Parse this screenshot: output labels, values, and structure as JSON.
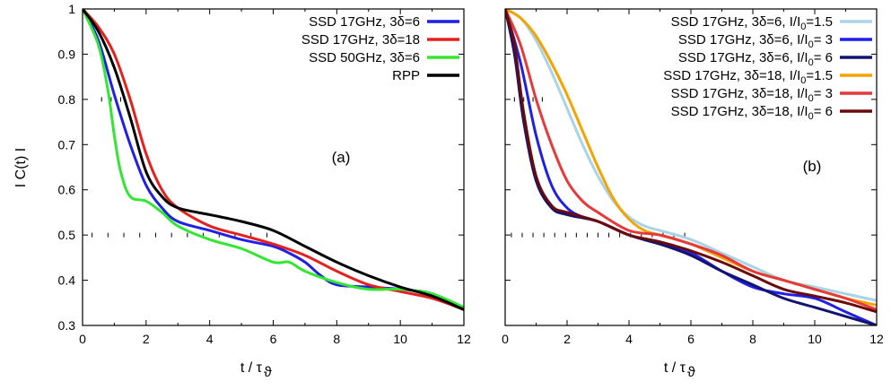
{
  "chart_data": [
    {
      "type": "line",
      "panel_label": "(a)",
      "xlabel": "t / τ",
      "xlabel_sub": "ϑ",
      "ylabel": "I C(t) I",
      "xlim": [
        0,
        12
      ],
      "ylim": [
        0.3,
        1
      ],
      "xticks": [
        "0",
        "2",
        "4",
        "6",
        "8",
        "10",
        "12"
      ],
      "yticks": [
        "0.3",
        "0.4",
        "0.5",
        "0.6",
        "0.7",
        "0.8",
        "0.9",
        "1"
      ],
      "legend_position": "top-right",
      "series": [
        {
          "name": "SSD 17GHz, 3δ=6",
          "color": "#1f1fe6",
          "x": [
            0,
            0.5,
            1,
            1.5,
            2,
            2.5,
            3,
            4,
            5,
            6,
            6.5,
            7,
            7.5,
            8,
            9,
            10,
            11,
            12
          ],
          "y": [
            1.0,
            0.93,
            0.81,
            0.7,
            0.61,
            0.56,
            0.53,
            0.51,
            0.49,
            0.475,
            0.46,
            0.44,
            0.41,
            0.39,
            0.385,
            0.38,
            0.37,
            0.335
          ]
        },
        {
          "name": "SSD 17GHz, 3δ=18",
          "color": "#e61f1f",
          "x": [
            0,
            0.5,
            1,
            1.5,
            2,
            2.5,
            3,
            4,
            5,
            6,
            7,
            8,
            9,
            10,
            11,
            12
          ],
          "y": [
            1.0,
            0.96,
            0.9,
            0.8,
            0.68,
            0.6,
            0.56,
            0.52,
            0.5,
            0.48,
            0.455,
            0.42,
            0.39,
            0.375,
            0.36,
            0.335
          ]
        },
        {
          "name": "SSD 50GHz, 3δ=6",
          "color": "#33e633",
          "x": [
            0,
            0.5,
            0.8,
            1,
            1.2,
            1.5,
            2,
            2.5,
            3,
            4,
            5,
            6,
            6.5,
            7,
            8,
            9,
            10,
            11,
            12
          ],
          "y": [
            1.0,
            0.92,
            0.82,
            0.72,
            0.64,
            0.585,
            0.575,
            0.55,
            0.52,
            0.49,
            0.47,
            0.44,
            0.44,
            0.42,
            0.395,
            0.38,
            0.38,
            0.37,
            0.34
          ]
        },
        {
          "name": "RPP",
          "color": "#000000",
          "x": [
            0,
            0.5,
            1,
            1.5,
            2,
            2.5,
            3,
            4,
            5,
            6,
            7,
            8,
            9,
            10,
            11,
            12
          ],
          "y": [
            1.0,
            0.95,
            0.87,
            0.76,
            0.64,
            0.585,
            0.56,
            0.545,
            0.53,
            0.51,
            0.475,
            0.44,
            0.41,
            0.385,
            0.365,
            0.335
          ]
        }
      ]
    },
    {
      "type": "line",
      "panel_label": "(b)",
      "xlabel": "t / τ",
      "xlabel_sub": "ϑ",
      "xlim": [
        0,
        12
      ],
      "ylim": [
        0.3,
        1
      ],
      "xticks": [
        "0",
        "2",
        "4",
        "6",
        "8",
        "10",
        "12"
      ],
      "legend_position": "top-right",
      "series": [
        {
          "name": "SSD 17GHz, 3δ=6, I/I0=1.5",
          "legend_base": "SSD 17GHz, 3δ=6, I/I",
          "legend_sub": "0",
          "legend_tail": "=1.5",
          "color": "#a8d4e6",
          "x": [
            0,
            0.5,
            1,
            1.5,
            2,
            2.5,
            3,
            3.5,
            4,
            4.5,
            5,
            6,
            7,
            8,
            9,
            10,
            11,
            12
          ],
          "y": [
            1.0,
            0.98,
            0.93,
            0.86,
            0.78,
            0.7,
            0.63,
            0.575,
            0.54,
            0.52,
            0.51,
            0.49,
            0.46,
            0.43,
            0.4,
            0.385,
            0.37,
            0.355
          ]
        },
        {
          "name": "SSD 17GHz, 3δ=6, I/I0= 3",
          "legend_base": "SSD 17GHz, 3δ=6, I/I",
          "legend_sub": "0",
          "legend_tail": "= 3",
          "color": "#1f1fe6",
          "x": [
            0,
            0.5,
            1,
            1.5,
            2,
            2.5,
            3,
            4,
            5,
            6,
            7,
            8,
            9,
            10,
            11,
            12
          ],
          "y": [
            1.0,
            0.88,
            0.72,
            0.61,
            0.56,
            0.54,
            0.53,
            0.5,
            0.48,
            0.46,
            0.42,
            0.385,
            0.37,
            0.36,
            0.33,
            0.3
          ]
        },
        {
          "name": "SSD 17GHz, 3δ=6, I/I0= 6",
          "legend_base": "SSD 17GHz, 3δ=6, I/I",
          "legend_sub": "0",
          "legend_tail": "= 6",
          "color": "#141470",
          "x": [
            0,
            0.3,
            0.6,
            1,
            1.5,
            2,
            3,
            4,
            5,
            6,
            7,
            8,
            9,
            10,
            11,
            12
          ],
          "y": [
            1.0,
            0.9,
            0.75,
            0.62,
            0.56,
            0.545,
            0.53,
            0.5,
            0.48,
            0.455,
            0.42,
            0.39,
            0.36,
            0.34,
            0.32,
            0.3
          ]
        },
        {
          "name": "SSD 17GHz, 3δ=18, I/I0=1.5",
          "legend_base": "SSD 17GHz, 3δ=18, I/I",
          "legend_sub": "0",
          "legend_tail": "=1.5",
          "color": "#f5a300",
          "x": [
            0,
            0.5,
            1,
            1.5,
            2,
            2.5,
            3,
            3.5,
            4,
            4.5,
            5,
            6,
            7,
            8,
            9,
            10,
            11,
            12
          ],
          "y": [
            1.0,
            0.98,
            0.94,
            0.88,
            0.81,
            0.73,
            0.65,
            0.58,
            0.535,
            0.51,
            0.5,
            0.48,
            0.45,
            0.42,
            0.4,
            0.38,
            0.36,
            0.345
          ]
        },
        {
          "name": "SSD 17GHz, 3δ=18, I/I0= 3",
          "legend_base": "SSD 17GHz, 3δ=18, I/I",
          "legend_sub": "0",
          "legend_tail": "= 3",
          "color": "#e63a3a",
          "x": [
            0,
            0.5,
            1,
            1.5,
            2,
            2.5,
            3,
            4,
            5,
            6,
            7,
            8,
            9,
            10,
            11,
            12
          ],
          "y": [
            1.0,
            0.92,
            0.8,
            0.7,
            0.62,
            0.575,
            0.55,
            0.51,
            0.5,
            0.48,
            0.455,
            0.42,
            0.4,
            0.38,
            0.36,
            0.335
          ]
        },
        {
          "name": "SSD 17GHz, 3δ=18, I/I0= 6",
          "legend_base": "SSD 17GHz, 3δ=18, I/I",
          "legend_sub": "0",
          "legend_tail": "= 6",
          "color": "#6b0a0a",
          "x": [
            0,
            0.3,
            0.6,
            1,
            1.5,
            2,
            3,
            4,
            5,
            6,
            7,
            8,
            9,
            10,
            11,
            12
          ],
          "y": [
            1.0,
            0.92,
            0.77,
            0.63,
            0.565,
            0.55,
            0.53,
            0.5,
            0.485,
            0.465,
            0.44,
            0.41,
            0.38,
            0.365,
            0.35,
            0.33
          ]
        }
      ]
    }
  ]
}
